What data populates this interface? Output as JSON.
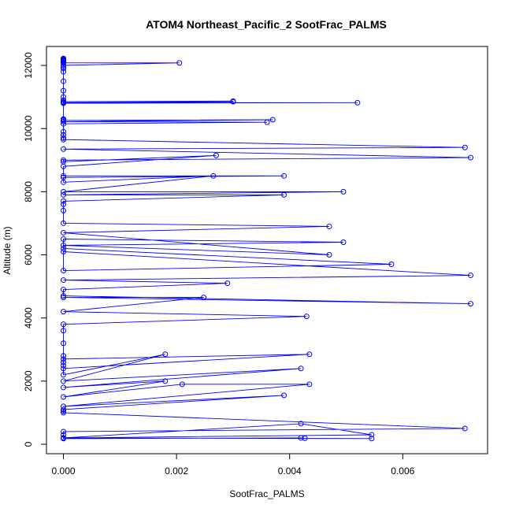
{
  "chart_data": {
    "type": "line",
    "title": "ATOM4 Northeast_Pacific_2 SootFrac_PALMS",
    "xlabel": "SootFrac_PALMS",
    "ylabel": "Altitude (m)",
    "xlim": [
      -0.0003,
      0.0075
    ],
    "ylim": [
      -300,
      12600
    ],
    "xticks": [
      0.0,
      0.002,
      0.004,
      0.006
    ],
    "xtick_labels": [
      "0.000",
      "0.002",
      "0.004",
      "0.006"
    ],
    "yticks": [
      0,
      2000,
      4000,
      6000,
      8000,
      10000,
      12000
    ],
    "ytick_labels": [
      "0",
      "2000",
      "4000",
      "6000",
      "8000",
      "10000",
      "12000"
    ],
    "grid": false,
    "legend": "none",
    "markers": "open-circle",
    "color": "#0000ff",
    "series": [
      {
        "x": [
          0,
          0,
          0,
          0,
          0,
          0,
          0,
          0,
          0.00205,
          0,
          0,
          0,
          0,
          0,
          0,
          0,
          0,
          0,
          0.003,
          0.003,
          0,
          0.0052,
          0,
          0,
          0,
          0,
          0.0037,
          0,
          0.0036,
          0,
          0,
          0,
          0,
          0,
          0.0071,
          0,
          0.0072,
          0,
          0,
          0.0027,
          0,
          0,
          0.0039,
          0,
          0,
          0.00265,
          0,
          0.00495,
          0,
          0.0039,
          0,
          0,
          0,
          0,
          0.0047,
          0,
          0.0047,
          0,
          0.00495,
          0,
          0,
          0.0058,
          0,
          0,
          0.0072,
          0,
          0.0029,
          0,
          0,
          0.0072,
          0,
          0.00248,
          0,
          0.0043,
          0,
          0,
          0,
          0,
          0,
          0,
          0,
          0.00435,
          0,
          0,
          0.0018,
          0,
          0.0042,
          0,
          0.0018,
          0,
          0.0021,
          0.00435,
          0,
          0.0039,
          0,
          0,
          0,
          0.0071,
          0,
          0,
          0,
          0.0042,
          0.00545,
          0,
          0.00545,
          0.00427,
          0.0042,
          0,
          0
        ],
        "y": [
          12220,
          12200,
          12180,
          12160,
          12140,
          12120,
          12100,
          12080,
          12080,
          12000,
          11950,
          11900,
          11800,
          11500,
          11200,
          11000,
          10900,
          10850,
          10870,
          10850,
          10820,
          10820,
          10800,
          10300,
          10280,
          10260,
          10280,
          10220,
          10200,
          10150,
          9900,
          9800,
          9700,
          9650,
          9400,
          9350,
          9080,
          9000,
          8950,
          9150,
          8800,
          8500,
          8500,
          8450,
          8300,
          8500,
          8000,
          8000,
          7900,
          7900,
          7700,
          7600,
          7400,
          7000,
          6900,
          6700,
          6000,
          6300,
          6400,
          6500,
          6200,
          5700,
          5500,
          6100,
          5350,
          5200,
          5100,
          4900,
          4700,
          4450,
          4650,
          4650,
          4200,
          4050,
          3800,
          3600,
          3200,
          2800,
          2600,
          2500,
          2400,
          2850,
          2700,
          2200,
          2850,
          2000,
          2400,
          1800,
          2000,
          1500,
          1900,
          1900,
          1200,
          1550,
          1100,
          1050,
          1000,
          500,
          400,
          300,
          200,
          650,
          300,
          200,
          180,
          190,
          200,
          180,
          200
        ]
      }
    ]
  }
}
